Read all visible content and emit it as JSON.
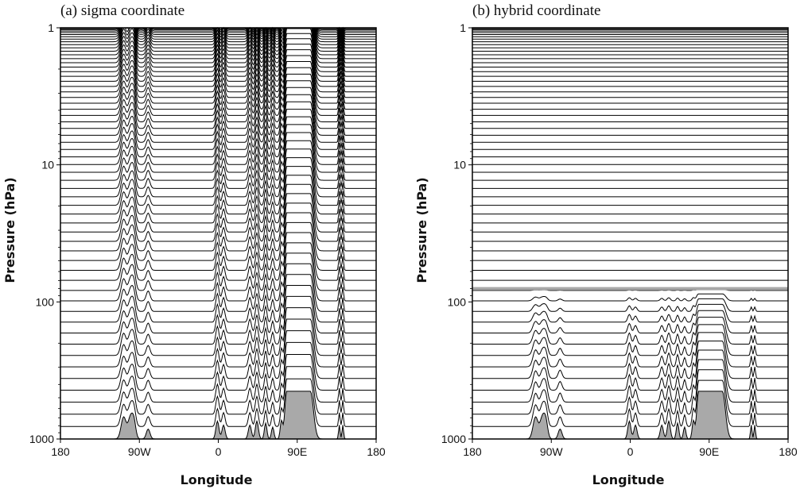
{
  "chart_data": [
    {
      "type": "line",
      "title": "(a) sigma coordinate",
      "xlabel": "Longitude",
      "ylabel": "Pressure (hPa)",
      "x_ticks": [
        "180",
        "90W",
        "0",
        "90E",
        "180"
      ],
      "x_tick_values": [
        -180,
        -90,
        0,
        90,
        180
      ],
      "y_ticks": [
        "1",
        "10",
        "100",
        "1000"
      ],
      "y_tick_values": [
        1,
        10,
        100,
        1000
      ],
      "y_scale": "log",
      "xlim": [
        -180,
        180
      ],
      "ylim": [
        1000,
        1
      ],
      "coordinate": "sigma",
      "level_count": 60,
      "top_level_hPa": 1,
      "surface_pressure_min_hPa": 450,
      "grid": false,
      "legend": "none"
    },
    {
      "type": "line",
      "title": "(b) hybrid coordinate",
      "xlabel": "Longitude",
      "ylabel": "Pressure (hPa)",
      "x_ticks": [
        "180",
        "90W",
        "0",
        "90E",
        "180"
      ],
      "x_tick_values": [
        -180,
        -90,
        0,
        90,
        180
      ],
      "y_ticks": [
        "1",
        "10",
        "100",
        "1000"
      ],
      "y_tick_values": [
        1,
        10,
        100,
        1000
      ],
      "y_scale": "log",
      "xlim": [
        -180,
        180
      ],
      "ylim": [
        1000,
        1
      ],
      "coordinate": "hybrid",
      "level_count": 60,
      "top_level_hPa": 1,
      "transition_level_hPa": 80,
      "surface_pressure_min_hPa": 450,
      "grid": false,
      "legend": "none"
    }
  ],
  "colors": {
    "level_line": "#000000",
    "terrain_fill": "#a9a9a9",
    "transition_line": "#a8a8a8",
    "frame": "#000000"
  }
}
